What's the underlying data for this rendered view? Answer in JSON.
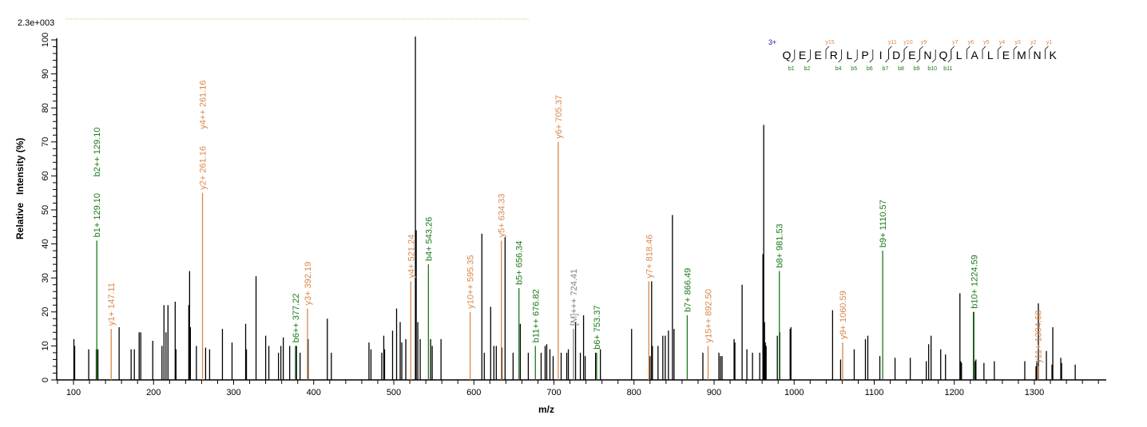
{
  "chart_data": {
    "type": "bar",
    "title": "",
    "scale_label": "2.3e+003",
    "xlabel": "m/z",
    "ylabel": "Relative   Intensity (%)",
    "xlim": [
      70,
      1390
    ],
    "ylim": [
      0,
      100
    ],
    "x_ticks": [
      100,
      200,
      300,
      400,
      500,
      600,
      700,
      800,
      900,
      1000,
      1100,
      1200,
      1300
    ],
    "y_ticks": [
      0,
      10,
      20,
      30,
      40,
      50,
      60,
      70,
      80,
      90,
      100
    ],
    "grid": false,
    "colors": {
      "b_ion": "#1a7a1a",
      "y_ion": "#d9874a",
      "precursor": "#808080",
      "unassigned": "#000000"
    },
    "annotated_peaks": [
      {
        "label": "b1+ 129.10",
        "mz": 129.1,
        "intensity": 41,
        "type": "b"
      },
      {
        "label": "b2++ 129.10",
        "mz": 129.1,
        "intensity": 41,
        "type": "b",
        "stacked": true
      },
      {
        "label": "y1+ 147.11",
        "mz": 147.11,
        "intensity": 15,
        "type": "y"
      },
      {
        "label": "y2+ 261.16",
        "mz": 261.16,
        "intensity": 55,
        "type": "y"
      },
      {
        "label": "y4++ 261.16",
        "mz": 261.16,
        "intensity": 55,
        "type": "y",
        "stacked": true
      },
      {
        "label": "b6++ 377.22",
        "mz": 377.22,
        "intensity": 10,
        "type": "b"
      },
      {
        "label": "y3+ 392.19",
        "mz": 392.19,
        "intensity": 21,
        "type": "y"
      },
      {
        "label": "y4+ 521.24",
        "mz": 521.24,
        "intensity": 29,
        "type": "y"
      },
      {
        "label": "b4+ 543.26",
        "mz": 543.26,
        "intensity": 34,
        "type": "b"
      },
      {
        "label": "y10++ 595.35",
        "mz": 595.35,
        "intensity": 20,
        "type": "y"
      },
      {
        "label": "y5+ 634.33",
        "mz": 634.33,
        "intensity": 41,
        "type": "y"
      },
      {
        "label": "b5+ 656.34",
        "mz": 656.34,
        "intensity": 27,
        "type": "b"
      },
      {
        "label": "b11++ 676.82",
        "mz": 676.82,
        "intensity": 10,
        "type": "b"
      },
      {
        "label": "y6+ 705.37",
        "mz": 705.37,
        "intensity": 70,
        "type": "y"
      },
      {
        "label": "[M]+++ 724.41",
        "mz": 724.41,
        "intensity": 15,
        "type": "precursor"
      },
      {
        "label": "b6+ 753.37",
        "mz": 753.37,
        "intensity": 8,
        "type": "b"
      },
      {
        "label": "y7+ 818.46",
        "mz": 818.46,
        "intensity": 29,
        "type": "y"
      },
      {
        "label": "b7+ 866.49",
        "mz": 866.49,
        "intensity": 19,
        "type": "b"
      },
      {
        "label": "y15++ 892.50",
        "mz": 892.5,
        "intensity": 10,
        "type": "y"
      },
      {
        "label": "b8+ 981.53",
        "mz": 981.53,
        "intensity": 32,
        "type": "b"
      },
      {
        "label": "y9+ 1060.59",
        "mz": 1060.59,
        "intensity": 11,
        "type": "y"
      },
      {
        "label": "b9+ 1110.57",
        "mz": 1110.57,
        "intensity": 38,
        "type": "b"
      },
      {
        "label": "b10+ 1224.59",
        "mz": 1224.59,
        "intensity": 20,
        "type": "b"
      },
      {
        "label": "y11+ 1304.68",
        "mz": 1304.68,
        "intensity": 4,
        "type": "y"
      }
    ],
    "unassigned_peaks": [
      [
        100.5,
        12
      ],
      [
        101.5,
        10
      ],
      [
        119,
        9
      ],
      [
        128.5,
        9
      ],
      [
        130.5,
        9
      ],
      [
        157,
        15.5
      ],
      [
        172,
        9
      ],
      [
        176,
        9
      ],
      [
        182,
        14
      ],
      [
        184,
        14
      ],
      [
        199,
        11.5
      ],
      [
        210.5,
        10
      ],
      [
        213,
        22
      ],
      [
        215.5,
        14
      ],
      [
        218,
        22
      ],
      [
        227,
        23
      ],
      [
        228,
        9
      ],
      [
        244,
        22
      ],
      [
        245,
        32
      ],
      [
        246,
        15.5
      ],
      [
        253.5,
        10
      ],
      [
        265,
        9.5
      ],
      [
        270,
        9
      ],
      [
        286,
        15
      ],
      [
        298,
        11
      ],
      [
        315,
        16.5
      ],
      [
        316,
        9
      ],
      [
        328,
        30.5
      ],
      [
        340,
        13
      ],
      [
        344,
        10
      ],
      [
        356,
        8
      ],
      [
        359,
        10
      ],
      [
        362,
        12.5
      ],
      [
        370,
        10
      ],
      [
        378.5,
        10
      ],
      [
        383,
        8
      ],
      [
        393,
        12
      ],
      [
        417,
        18
      ],
      [
        422,
        8
      ],
      [
        469,
        11
      ],
      [
        471.5,
        9
      ],
      [
        485,
        8
      ],
      [
        487.5,
        13
      ],
      [
        488.5,
        9
      ],
      [
        498.5,
        14.5
      ],
      [
        503.5,
        21
      ],
      [
        508,
        17
      ],
      [
        510,
        11
      ],
      [
        515,
        12
      ],
      [
        527,
        101
      ],
      [
        528,
        44
      ],
      [
        530,
        17
      ],
      [
        533,
        12
      ],
      [
        546,
        12
      ],
      [
        548,
        10
      ],
      [
        559,
        12
      ],
      [
        610,
        43
      ],
      [
        613,
        8
      ],
      [
        621,
        21.5
      ],
      [
        625,
        10
      ],
      [
        628,
        10
      ],
      [
        635,
        9.5
      ],
      [
        639,
        42
      ],
      [
        649,
        8
      ],
      [
        658,
        16.5
      ],
      [
        668,
        8
      ],
      [
        684,
        8
      ],
      [
        689,
        10
      ],
      [
        691,
        10.5
      ],
      [
        695,
        9
      ],
      [
        699,
        7
      ],
      [
        709,
        8
      ],
      [
        716,
        8
      ],
      [
        718,
        9
      ],
      [
        727,
        17
      ],
      [
        733,
        8
      ],
      [
        737,
        19
      ],
      [
        739,
        7
      ],
      [
        752,
        8
      ],
      [
        758,
        9
      ],
      [
        797,
        15
      ],
      [
        820,
        7
      ],
      [
        822,
        29
      ],
      [
        823,
        10
      ],
      [
        830,
        10
      ],
      [
        836,
        13
      ],
      [
        839,
        13
      ],
      [
        843,
        14.5
      ],
      [
        848,
        48.5
      ],
      [
        850,
        15
      ],
      [
        886,
        8
      ],
      [
        906,
        8
      ],
      [
        908,
        7
      ],
      [
        910,
        7
      ],
      [
        925,
        12
      ],
      [
        926,
        11
      ],
      [
        935,
        28
      ],
      [
        941,
        9
      ],
      [
        948,
        8
      ],
      [
        957,
        8
      ],
      [
        961,
        37
      ],
      [
        962,
        75
      ],
      [
        963,
        17
      ],
      [
        964,
        11
      ],
      [
        965,
        10
      ],
      [
        979,
        13
      ],
      [
        982,
        14
      ],
      [
        995,
        15
      ],
      [
        996,
        15.5
      ],
      [
        1048,
        20.5
      ],
      [
        1058,
        6
      ],
      [
        1075,
        9
      ],
      [
        1089,
        12
      ],
      [
        1092,
        13
      ],
      [
        1107,
        7
      ],
      [
        1126,
        6.5
      ],
      [
        1145,
        6.5
      ],
      [
        1165,
        5.5
      ],
      [
        1168,
        10.5
      ],
      [
        1171,
        13
      ],
      [
        1183,
        9
      ],
      [
        1189,
        7.5
      ],
      [
        1207,
        25.5
      ],
      [
        1208,
        5.5
      ],
      [
        1209,
        5
      ],
      [
        1224,
        20
      ],
      [
        1226,
        5.5
      ],
      [
        1227,
        6
      ],
      [
        1237,
        5
      ],
      [
        1250,
        5.5
      ],
      [
        1288,
        5.5
      ],
      [
        1302,
        4
      ],
      [
        1303,
        5.5
      ],
      [
        1305,
        22.5
      ],
      [
        1315,
        8.5
      ],
      [
        1322,
        4.5
      ],
      [
        1323,
        15.5
      ],
      [
        1333,
        6.5
      ],
      [
        1334,
        5
      ],
      [
        1351,
        4.5
      ]
    ]
  },
  "sequence": {
    "charge": "3+",
    "residues": [
      "Q",
      "E",
      "E",
      "R",
      "L",
      "P",
      "I",
      "D",
      "E",
      "N",
      "Q",
      "L",
      "A",
      "L",
      "E",
      "M",
      "N",
      "K"
    ],
    "b_ions": [
      {
        "label": "b1",
        "after": 0
      },
      {
        "label": "b2",
        "after": 1
      },
      {
        "label": "b4",
        "after": 3
      },
      {
        "label": "b5",
        "after": 4
      },
      {
        "label": "b6",
        "after": 5
      },
      {
        "label": "b7",
        "after": 6
      },
      {
        "label": "b8",
        "after": 7
      },
      {
        "label": "b9",
        "after": 8
      },
      {
        "label": "b10",
        "after": 9
      },
      {
        "label": "b11",
        "after": 10
      }
    ],
    "y_ions": [
      {
        "label": "y15",
        "after": 2
      },
      {
        "label": "y11",
        "after": 6
      },
      {
        "label": "y10",
        "after": 7
      },
      {
        "label": "y9",
        "after": 8
      },
      {
        "label": "y7",
        "after": 10
      },
      {
        "label": "y6",
        "after": 11
      },
      {
        "label": "y5",
        "after": 12
      },
      {
        "label": "y4",
        "after": 13
      },
      {
        "label": "y3",
        "after": 14
      },
      {
        "label": "y2",
        "after": 15
      },
      {
        "label": "y1",
        "after": 16
      }
    ]
  }
}
